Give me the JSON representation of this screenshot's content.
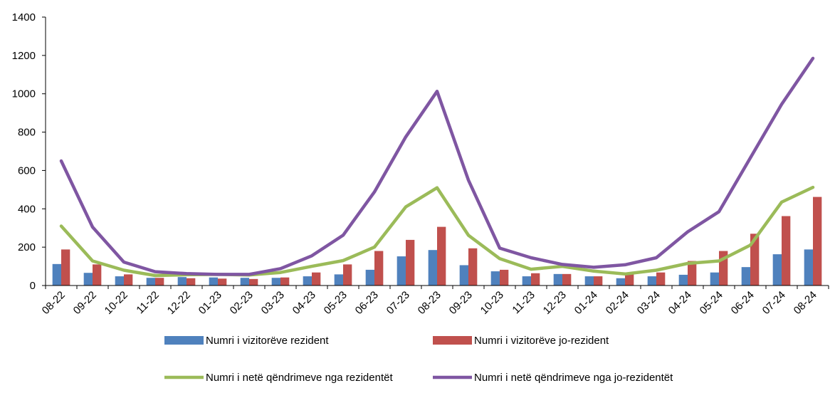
{
  "chart_data": {
    "type": "bar",
    "title": "",
    "xlabel": "",
    "ylabel": "",
    "ylim": [
      0,
      1400
    ],
    "yticks": [
      0,
      200,
      400,
      600,
      800,
      1000,
      1200,
      1400
    ],
    "grid": false,
    "legend_placement": "bottom",
    "categories": [
      "08-22",
      "09-22",
      "10-22",
      "11-22",
      "12-22",
      "01-23",
      "02-23",
      "03-23",
      "04-23",
      "05-23",
      "06-23",
      "07-23",
      "08-23",
      "09-23",
      "10-23",
      "11-23",
      "12-23",
      "01-24",
      "02-24",
      "03-24",
      "04-24",
      "05-24",
      "06-24",
      "07-24",
      "08-24"
    ],
    "series": [
      {
        "name": "Numri i vizitorëve rezident",
        "kind": "bar",
        "color": "#4F81BD",
        "values": [
          112,
          66,
          48,
          40,
          44,
          42,
          40,
          40,
          48,
          58,
          82,
          152,
          185,
          106,
          74,
          48,
          60,
          48,
          38,
          48,
          56,
          68,
          96,
          163,
          188
        ]
      },
      {
        "name": "Numri i vizitorëve jo-rezident",
        "kind": "bar",
        "color": "#C0504D",
        "values": [
          188,
          110,
          58,
          40,
          38,
          36,
          34,
          42,
          68,
          110,
          180,
          238,
          306,
          194,
          82,
          64,
          60,
          48,
          58,
          68,
          128,
          180,
          270,
          362,
          462
        ]
      },
      {
        "name": "Numri i netë qëndrimeve nga rezidentët",
        "kind": "line",
        "color": "#9BBB59",
        "values": [
          310,
          128,
          80,
          52,
          56,
          58,
          55,
          68,
          100,
          130,
          200,
          410,
          510,
          262,
          140,
          85,
          100,
          75,
          60,
          80,
          115,
          128,
          210,
          435,
          512
        ]
      },
      {
        "name": "Numri i netë qëndrimeve nga jo-rezidentët",
        "kind": "line",
        "color": "#7F56A2",
        "values": [
          650,
          305,
          122,
          72,
          62,
          58,
          58,
          88,
          155,
          262,
          488,
          775,
          1013,
          550,
          195,
          145,
          110,
          95,
          108,
          145,
          280,
          385,
          665,
          945,
          1185
        ]
      }
    ]
  }
}
